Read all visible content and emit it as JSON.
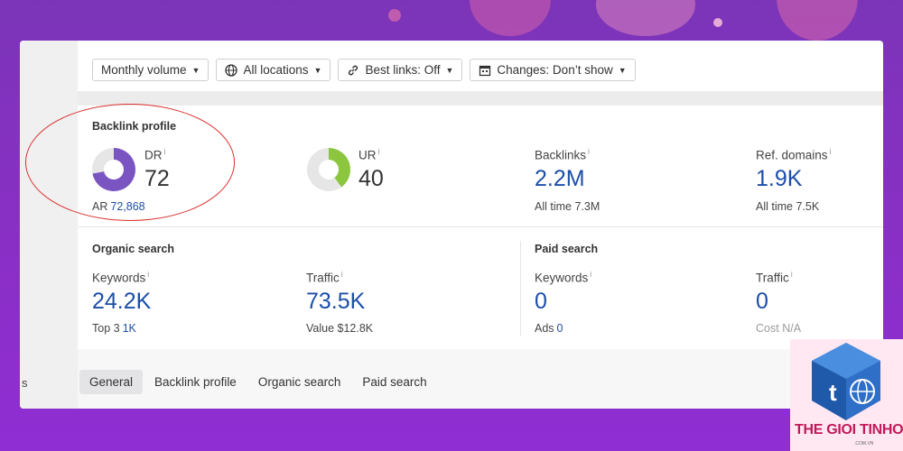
{
  "toolbar": {
    "volume": "Monthly volume",
    "locations": "All locations",
    "best_links": "Best links: Off",
    "changes": "Changes: Don’t show"
  },
  "backlink_profile": {
    "title": "Backlink profile",
    "dr": {
      "label": "DR",
      "info": "i",
      "value": "72",
      "fill_fraction": 0.72,
      "color": "#7a55c2"
    },
    "ar": {
      "label": "AR",
      "value": "72,868"
    },
    "ur": {
      "label": "UR",
      "info": "i",
      "value": "40",
      "fill_fraction": 0.4,
      "color": "#8cc63f"
    },
    "backlinks": {
      "label": "Backlinks",
      "info": "i",
      "value": "2.2M",
      "sub_label": "All time",
      "sub_value": "7.3M"
    },
    "ref_domains": {
      "label": "Ref. domains",
      "info": "i",
      "value": "1.9K",
      "sub_label": "All time",
      "sub_value": "7.5K"
    }
  },
  "organic_search": {
    "title": "Organic search",
    "keywords": {
      "label": "Keywords",
      "info": "i",
      "value": "24.2K",
      "sub_label": "Top 3",
      "sub_value": "1K"
    },
    "traffic": {
      "label": "Traffic",
      "info": "i",
      "value": "73.5K",
      "sub_label": "Value",
      "sub_value": "$12.8K"
    }
  },
  "paid_search": {
    "title": "Paid search",
    "keywords": {
      "label": "Keywords",
      "info": "i",
      "value": "0",
      "sub_label": "Ads",
      "sub_value": "0"
    },
    "traffic": {
      "label": "Traffic",
      "info": "i",
      "value": "0",
      "sub_label": "Cost",
      "sub_value": "N/A"
    }
  },
  "tabs": [
    "General",
    "Backlink profile",
    "Organic search",
    "Paid search"
  ],
  "side_text": "s",
  "watermark": {
    "text": "THE GIOI TINHOC",
    "domain": ".COM.VN",
    "letters": "t"
  },
  "colors": {
    "accent_blue": "#1c4ea8",
    "annotation_red": "#d9302c",
    "brand_pink": "#c2185b"
  }
}
